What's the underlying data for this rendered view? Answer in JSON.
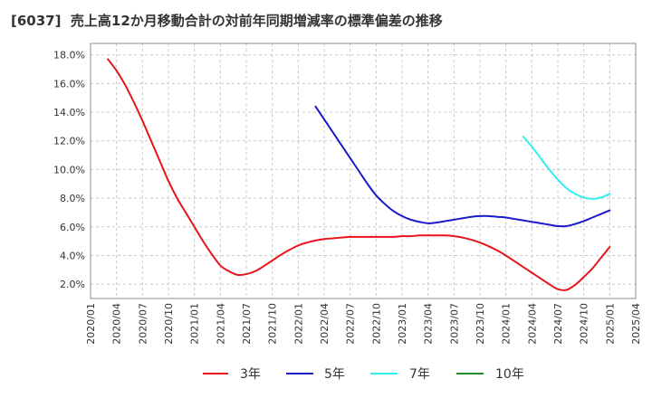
{
  "chart_data": {
    "type": "line",
    "title": "[6037]  売上高12か月移動合計の対前年同期増減率の標準偏差の推移",
    "xlabel": "",
    "ylabel": "",
    "x_ticks": [
      "2020/01",
      "2020/04",
      "2020/07",
      "2020/10",
      "2021/01",
      "2021/04",
      "2021/07",
      "2021/10",
      "2022/01",
      "2022/04",
      "2022/07",
      "2022/10",
      "2023/01",
      "2023/04",
      "2023/07",
      "2023/10",
      "2024/01",
      "2024/04",
      "2024/07",
      "2024/10",
      "2025/01",
      "2025/04"
    ],
    "ylim": [
      1.0,
      18.8
    ],
    "y_ticks": [
      2,
      4,
      6,
      8,
      10,
      12,
      14,
      16,
      18
    ],
    "y_tick_labels": [
      "2.0%",
      "4.0%",
      "6.0%",
      "8.0%",
      "10.0%",
      "12.0%",
      "14.0%",
      "16.0%",
      "18.0%"
    ],
    "grid": true,
    "legend_position": "bottom",
    "series": [
      {
        "name": "3年",
        "color": "#e8141a",
        "start": [
          2020,
          3
        ],
        "values": [
          17.7,
          16.9,
          15.9,
          14.7,
          13.4,
          12.0,
          10.6,
          9.2,
          8.0,
          7.0,
          6.0,
          5.0,
          4.1,
          3.3,
          2.9,
          2.65,
          2.7,
          2.9,
          3.25,
          3.65,
          4.05,
          4.4,
          4.7,
          4.9,
          5.05,
          5.15,
          5.2,
          5.25,
          5.3,
          5.3,
          5.3,
          5.3,
          5.3,
          5.3,
          5.35,
          5.35,
          5.4,
          5.4,
          5.4,
          5.4,
          5.35,
          5.25,
          5.1,
          4.9,
          4.65,
          4.35,
          4.0,
          3.6,
          3.2,
          2.8,
          2.4,
          2.0,
          1.65,
          1.6,
          1.95,
          2.5,
          3.1,
          3.85,
          4.6
        ]
      },
      {
        "name": "5年",
        "color": "#1a1ac8",
        "start": [
          2022,
          3
        ],
        "values": [
          14.4,
          13.5,
          12.6,
          11.7,
          10.8,
          9.9,
          9.0,
          8.2,
          7.6,
          7.1,
          6.75,
          6.5,
          6.35,
          6.25,
          6.3,
          6.4,
          6.5,
          6.6,
          6.7,
          6.75,
          6.75,
          6.7,
          6.65,
          6.55,
          6.45,
          6.35,
          6.25,
          6.15,
          6.05,
          6.05,
          6.2,
          6.4,
          6.65,
          6.9,
          7.15
        ]
      },
      {
        "name": "7年",
        "color": "#33eeee",
        "start": [
          2024,
          3
        ],
        "values": [
          12.3,
          11.6,
          10.8,
          10.0,
          9.3,
          8.7,
          8.3,
          8.05,
          7.95,
          8.05,
          8.3
        ]
      },
      {
        "name": "10年",
        "color": "#2a8a2a",
        "start": null,
        "values": []
      }
    ]
  }
}
